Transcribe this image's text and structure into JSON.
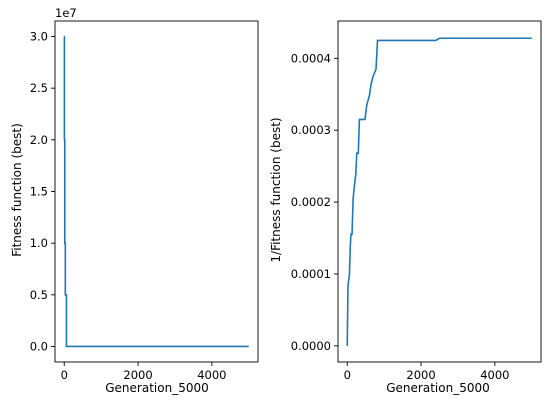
{
  "chart_data": [
    {
      "type": "line",
      "xlabel": "Generation_5000",
      "ylabel": "Fitness function (best)",
      "offset_label": "1e7",
      "xlim": [
        -250,
        5250
      ],
      "ylim": [
        -0.15,
        3.15
      ],
      "xticks": [
        0,
        2000,
        4000
      ],
      "xtick_labels": [
        "0",
        "2000",
        "4000"
      ],
      "yticks": [
        0.0,
        0.5,
        1.0,
        1.5,
        2.0,
        2.5,
        3.0
      ],
      "ytick_labels": [
        "0.0",
        "0.5",
        "1.0",
        "1.5",
        "2.0",
        "2.5",
        "3.0"
      ],
      "grid": false,
      "color": "#1f77b4",
      "series": [
        {
          "x": [
            0,
            5,
            5,
            15,
            15,
            30,
            30,
            60,
            60,
            5000
          ],
          "y": [
            3.0,
            3.0,
            2.0,
            2.0,
            1.0,
            1.0,
            0.5,
            0.5,
            0.0003,
            0.0002
          ]
        }
      ]
    },
    {
      "type": "line",
      "xlabel": "Generation_5000",
      "ylabel": "1/Fitness function (best)",
      "xlim": [
        -250,
        5250
      ],
      "ylim": [
        -2.25e-05,
        0.000452
      ],
      "xticks": [
        0,
        2000,
        4000
      ],
      "xtick_labels": [
        "0",
        "2000",
        "4000"
      ],
      "yticks": [
        0.0,
        0.0001,
        0.0002,
        0.0003,
        0.0004
      ],
      "ytick_labels": [
        "0.0000",
        "0.0001",
        "0.0002",
        "0.0003",
        "0.0004"
      ],
      "grid": false,
      "color": "#1f77b4",
      "series": [
        {
          "x": [
            0,
            20,
            30,
            60,
            80,
            100,
            130,
            160,
            200,
            230,
            260,
            300,
            330,
            420,
            480,
            530,
            600,
            650,
            700,
            780,
            820,
            2400,
            2500,
            5000
          ],
          "y": [
            0.0,
            8.2e-05,
            8.8e-05,
            9.8e-05,
            0.000135,
            0.000155,
            0.000155,
            0.000205,
            0.000225,
            0.000238,
            0.000268,
            0.000268,
            0.000315,
            0.000315,
            0.000315,
            0.000335,
            0.000348,
            0.000365,
            0.000375,
            0.000385,
            0.000425,
            0.000425,
            0.000428,
            0.000428
          ]
        }
      ]
    }
  ]
}
